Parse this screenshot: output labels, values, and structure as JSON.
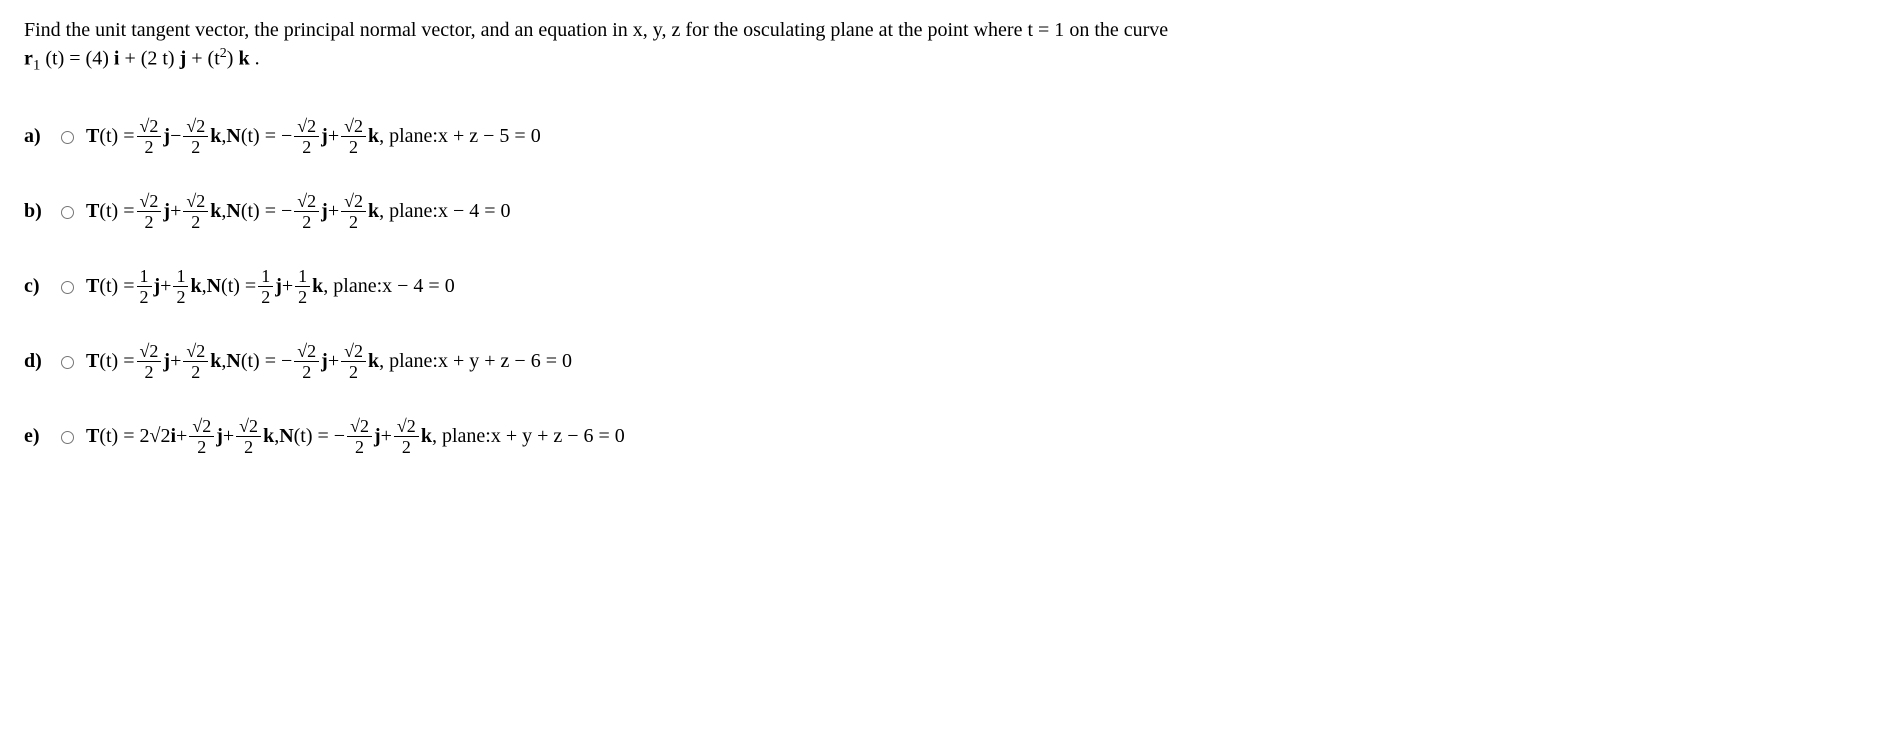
{
  "question": {
    "text_part1": "Find the unit tangent vector, the principal normal vector, and an equation in ",
    "vars": "x, y, z",
    "text_part2": " for the osculating plane at the point where ",
    "cond": "t = 1",
    "text_part3": " on the curve",
    "curve_lhs": "r",
    "curve_sub": "1",
    "curve_arg": " (t) = (4) ",
    "i": "i",
    "plus1": " + (2 t) ",
    "j": "j",
    "plus2": " + ",
    "t2_open": "(",
    "t2_var": "t",
    "t2_close": ") ",
    "k": "k",
    "period": " ."
  },
  "options": {
    "a": {
      "label": "a)",
      "T_label": "T",
      "T_arg": "(t) = ",
      "T_c1_num": "√2",
      "T_c1_den": "2",
      "T_v1": "j",
      "T_op1": " − ",
      "T_c2_num": "√2",
      "T_c2_den": "2",
      "T_v2": "k",
      "sep1": ",  ",
      "N_label": "N",
      "N_arg": "(t) = − ",
      "N_c1_num": "√2",
      "N_c1_den": "2",
      "N_v1": "j",
      "N_op1": " + ",
      "N_c2_num": "√2",
      "N_c2_den": "2",
      "N_v2": "k",
      "sep2": ",  plane: ",
      "plane": "x + z − 5 = 0"
    },
    "b": {
      "label": "b)",
      "T_label": "T",
      "T_arg": "(t) = ",
      "T_c1_num": "√2",
      "T_c1_den": "2",
      "T_v1": "j",
      "T_op1": " + ",
      "T_c2_num": "√2",
      "T_c2_den": "2",
      "T_v2": "k",
      "sep1": ",  ",
      "N_label": "N",
      "N_arg": "(t) = − ",
      "N_c1_num": "√2",
      "N_c1_den": "2",
      "N_v1": "j",
      "N_op1": " + ",
      "N_c2_num": "√2",
      "N_c2_den": "2",
      "N_v2": "k",
      "sep2": ",  plane: ",
      "plane": "x − 4 = 0"
    },
    "c": {
      "label": "c)",
      "T_label": "T",
      "T_arg": "(t) = ",
      "T_c1_num": "1",
      "T_c1_den": "2",
      "T_v1": "j",
      "T_op1": " + ",
      "T_c2_num": "1",
      "T_c2_den": "2",
      "T_v2": "k",
      "sep1": ",  ",
      "N_label": "N",
      "N_arg": "(t) = ",
      "N_c1_num": "1",
      "N_c1_den": "2",
      "N_v1": "j",
      "N_op1": " + ",
      "N_c2_num": "1",
      "N_c2_den": "2",
      "N_v2": "k",
      "sep2": ",  plane: ",
      "plane": "x − 4 = 0"
    },
    "d": {
      "label": "d)",
      "T_label": "T",
      "T_arg": "(t) = ",
      "T_c1_num": "√2",
      "T_c1_den": "2",
      "T_v1": "j",
      "T_op1": " + ",
      "T_c2_num": "√2",
      "T_c2_den": "2",
      "T_v2": "k",
      "sep1": ",  ",
      "N_label": "N",
      "N_arg": "(t) = − ",
      "N_c1_num": "√2",
      "N_c1_den": "2",
      "N_v1": "j",
      "N_op1": " + ",
      "N_c2_num": "√2",
      "N_c2_den": "2",
      "N_v2": "k",
      "sep2": ",  plane: ",
      "plane": "x + y + z − 6 = 0"
    },
    "e": {
      "label": "e)",
      "T_label": "T",
      "T_arg": "(t) = 2√2",
      "T_v0": "i",
      "T_op0": " + ",
      "T_c1_num": "√2",
      "T_c1_den": "2",
      "T_v1": "j",
      "T_op1": " + ",
      "T_c2_num": "√2",
      "T_c2_den": "2",
      "T_v2": "k",
      "sep1": ",  ",
      "N_label": "N",
      "N_arg": "(t) = − ",
      "N_c1_num": "√2",
      "N_c1_den": "2",
      "N_v1": "j",
      "N_op1": " + ",
      "N_c2_num": "√2",
      "N_c2_den": "2",
      "N_v2": "k",
      "sep2": ",  plane: ",
      "plane": "x + y + z − 6 = 0"
    }
  }
}
